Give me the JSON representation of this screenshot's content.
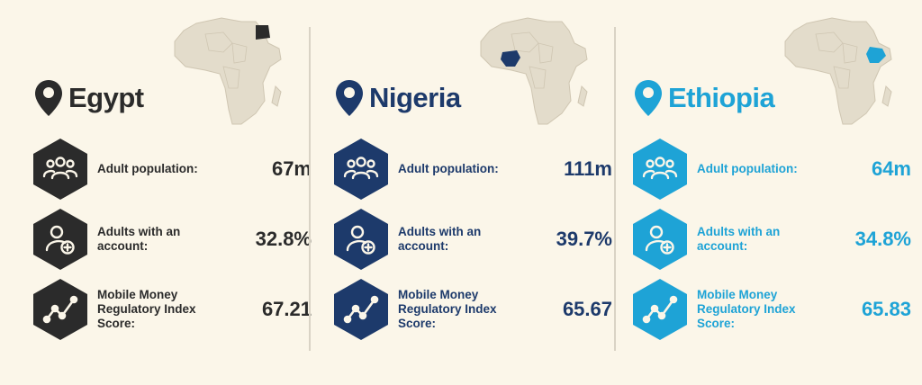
{
  "columns": [
    {
      "country": "Egypt",
      "color": "#2b2b2b",
      "map_highlight": "north-east",
      "stats": [
        {
          "label": "Adult population:",
          "value": "67m",
          "icon": "people-icon"
        },
        {
          "label": "Adults with an account:",
          "value": "32.8%",
          "icon": "user-plus-icon"
        },
        {
          "label": "Mobile Money Regulatory Index Score:",
          "value": "67.21",
          "icon": "trend-line-icon"
        }
      ]
    },
    {
      "country": "Nigeria",
      "color": "#1d3a6b",
      "map_highlight": "west",
      "stats": [
        {
          "label": "Adult population:",
          "value": "111m",
          "icon": "people-icon"
        },
        {
          "label": "Adults with an account:",
          "value": "39.7%",
          "icon": "user-plus-icon"
        },
        {
          "label": "Mobile Money Regulatory Index Score:",
          "value": "65.67",
          "icon": "trend-line-icon"
        }
      ]
    },
    {
      "country": "Ethiopia",
      "color": "#1ea3d6",
      "map_highlight": "east",
      "stats": [
        {
          "label": "Adult population:",
          "value": "64m",
          "icon": "people-icon"
        },
        {
          "label": "Adults with an account:",
          "value": "34.8%",
          "icon": "user-plus-icon"
        },
        {
          "label": "Mobile Money Regulatory Index Score:",
          "value": "65.83",
          "icon": "trend-line-icon"
        }
      ]
    }
  ],
  "colors": {
    "background": "#fbf6e9",
    "map_land": "#e3dccb",
    "map_border": "#cfc6b2",
    "divider": "#d9d3c5"
  }
}
